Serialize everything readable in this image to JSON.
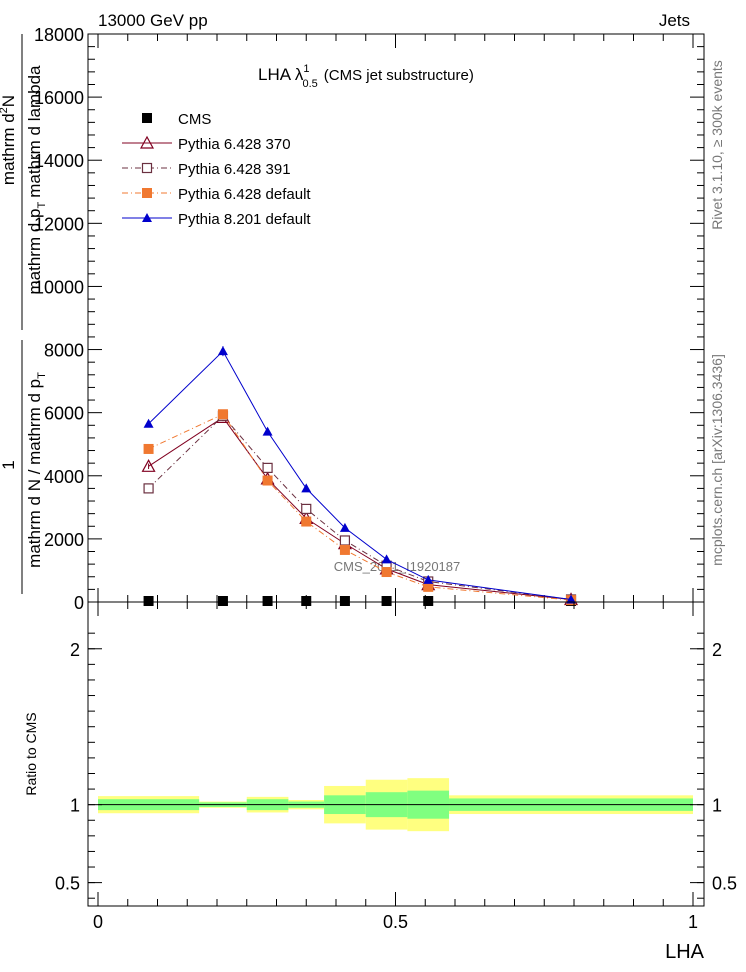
{
  "header": {
    "left": "13000 GeV pp",
    "right": "Jets"
  },
  "side_labels": {
    "rivet": "Rivet 3.1.10, ≥ 300k events",
    "mcplots": "mcplots.cern.ch [arXiv:1306.3436]"
  },
  "watermark": "CMS_2021_I1920187",
  "chart_data": [
    {
      "type": "line",
      "title": "LHA λ",
      "title_sup": "1",
      "title_sub": "0.5",
      "title_suffix": "(CMS jet substructure)",
      "ylabel": "1 / mathrm d N / mathrm d p_T mathrm d^2N / mathrm d p_T mathrm d lambda",
      "ylabel_parts": {
        "one": "1",
        "lower": "mathrm d N / mathrm d p",
        "lower_sub": "T",
        "upper_a": "mathrm d",
        "upper_sup": "2",
        "upper_b": "N",
        "denom": "mathrm d p",
        "denom_sub": "T",
        "denom_end": "mathrm d lambda"
      },
      "xlim": [
        0,
        1
      ],
      "ylim": [
        0,
        18000
      ],
      "yticks": [
        0,
        2000,
        4000,
        6000,
        8000,
        10000,
        12000,
        14000,
        16000,
        18000
      ],
      "ytick_labels": [
        "0",
        "2000",
        "4000",
        "6000",
        "8000",
        "10000",
        "12000",
        "14000",
        "16000",
        "18000"
      ],
      "x": [
        0.085,
        0.21,
        0.285,
        0.35,
        0.415,
        0.485,
        0.555,
        0.795
      ],
      "series": [
        {
          "name": "CMS",
          "color": "#000000",
          "marker": "square-filled",
          "dash": "none",
          "values": [
            0,
            0,
            0,
            0,
            0,
            0,
            0,
            0
          ]
        },
        {
          "name": "Pythia 6.428 370",
          "color": "#800020",
          "marker": "triangle-open",
          "dash": "solid",
          "values": [
            4300,
            5850,
            3900,
            2650,
            1850,
            1050,
            550,
            80
          ]
        },
        {
          "name": "Pythia 6.428 391",
          "color": "#6b3040",
          "marker": "square-open",
          "dash": "dashdot",
          "values": [
            3600,
            5900,
            4250,
            2950,
            1950,
            1150,
            650,
            80
          ]
        },
        {
          "name": "Pythia 6.428 default",
          "color": "#f07830",
          "marker": "square-filled",
          "dash": "dashdot",
          "values": [
            4850,
            5950,
            3850,
            2550,
            1650,
            950,
            480,
            60
          ]
        },
        {
          "name": "Pythia 8.201 default",
          "color": "#0000cc",
          "marker": "triangle-filled",
          "dash": "solid",
          "values": [
            5650,
            7950,
            5400,
            3600,
            2350,
            1350,
            700,
            80
          ]
        }
      ]
    },
    {
      "type": "area",
      "xlabel": "LHA",
      "ylabel": "Ratio to CMS",
      "xlim": [
        0,
        1
      ],
      "ylim": [
        0.35,
        2.3
      ],
      "xticks": [
        0,
        0.5,
        1
      ],
      "xtick_labels": [
        "0",
        "0.5",
        "1"
      ],
      "yticks": [
        0.5,
        1,
        2
      ],
      "ytick_labels": [
        "0.5",
        "1",
        "2"
      ],
      "bins": [
        0,
        0.17,
        0.25,
        0.32,
        0.38,
        0.45,
        0.52,
        0.59,
        1.0
      ],
      "band_inner": [
        0.035,
        0.015,
        0.035,
        0.02,
        0.06,
        0.08,
        0.09,
        0.04
      ],
      "band_outer": [
        0.055,
        0.02,
        0.05,
        0.03,
        0.12,
        0.16,
        0.17,
        0.06
      ],
      "inner_color": "#80ff80",
      "outer_color": "#ffff80"
    }
  ]
}
